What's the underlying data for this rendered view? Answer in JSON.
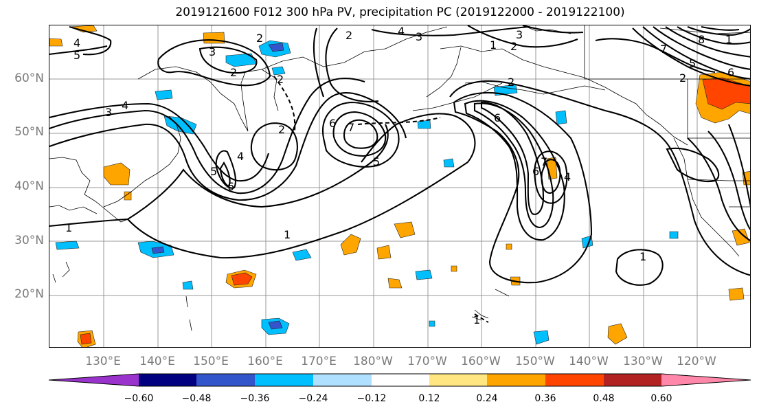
{
  "title": "2019121600 F012 300 hPa PV, precipitation PC (2019122000 - 2019122100)",
  "lat_labels": [
    "60°N",
    "50°N",
    "40°N",
    "30°N",
    "20°N"
  ],
  "lon_labels": [
    "130°E",
    "140°E",
    "150°E",
    "160°E",
    "170°E",
    "180°W",
    "170°W",
    "160°W",
    "150°W",
    "140°W",
    "130°W",
    "120°W"
  ],
  "colorbar": {
    "labels": [
      "−0.60",
      "−0.48",
      "−0.36",
      "−0.24",
      "−0.12",
      "0.12",
      "0.24",
      "0.36",
      "0.48",
      "0.60"
    ],
    "colors": [
      "#9933cc",
      "#000080",
      "#3355cc",
      "#00bfff",
      "#b0e0ff",
      "#ffffff",
      "#ffe680",
      "#ffa500",
      "#ff4500",
      "#b22222",
      "#ff88aa"
    ]
  },
  "contour_labels": [
    {
      "id": "l1",
      "text": "4"
    },
    {
      "id": "l2",
      "text": "5"
    },
    {
      "id": "l3",
      "text": "3"
    },
    {
      "id": "l4",
      "text": "4"
    },
    {
      "id": "l5",
      "text": "3"
    },
    {
      "id": "l6",
      "text": "2"
    },
    {
      "id": "l7",
      "text": "2"
    },
    {
      "id": "l8",
      "text": "4"
    },
    {
      "id": "l9",
      "text": "3"
    },
    {
      "id": "l10",
      "text": "3"
    },
    {
      "id": "l11",
      "text": "2"
    },
    {
      "id": "l12",
      "text": "1"
    },
    {
      "id": "l13",
      "text": "2"
    },
    {
      "id": "l14",
      "text": "8"
    },
    {
      "id": "l15",
      "text": "7"
    },
    {
      "id": "l16",
      "text": "5"
    },
    {
      "id": "l17",
      "text": "2"
    },
    {
      "id": "l18",
      "text": "6"
    },
    {
      "id": "l19",
      "text": "1"
    },
    {
      "id": "l20",
      "text": "2"
    },
    {
      "id": "l21",
      "text": "4"
    },
    {
      "id": "l22",
      "text": "5"
    },
    {
      "id": "l23",
      "text": "6"
    },
    {
      "id": "l24",
      "text": "2"
    },
    {
      "id": "l25",
      "text": "6"
    },
    {
      "id": "l26",
      "text": "7"
    },
    {
      "id": "l27",
      "text": "5"
    },
    {
      "id": "l28",
      "text": "6"
    },
    {
      "id": "l29",
      "text": "6"
    },
    {
      "id": "l30",
      "text": "7"
    },
    {
      "id": "l31",
      "text": "4"
    },
    {
      "id": "l32",
      "text": "1"
    },
    {
      "id": "l33",
      "text": "1"
    },
    {
      "id": "l34",
      "text": "1"
    },
    {
      "id": "l35",
      "text": "1"
    },
    {
      "id": "l36",
      "text": "2"
    }
  ]
}
